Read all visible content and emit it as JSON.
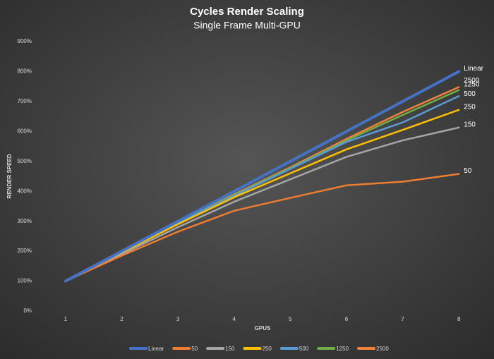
{
  "chart_data": {
    "type": "line",
    "title": "Cycles Render Scaling",
    "subtitle": "Single Frame Multi-GPU",
    "x_label": "GPUS",
    "y_label": "RENDER SPEED",
    "x": [
      1,
      2,
      3,
      4,
      5,
      6,
      7,
      8
    ],
    "xlim": [
      0.5,
      8.5
    ],
    "xticks": [
      1,
      2,
      3,
      4,
      5,
      6,
      7,
      8
    ],
    "ylim": [
      0,
      900
    ],
    "yticks": [
      {
        "value": 0,
        "label": "0%"
      },
      {
        "value": 100,
        "label": "100%"
      },
      {
        "value": 200,
        "label": "200%"
      },
      {
        "value": 300,
        "label": "300%"
      },
      {
        "value": 400,
        "label": "400%"
      },
      {
        "value": 500,
        "label": "500%"
      },
      {
        "value": 600,
        "label": "600%"
      },
      {
        "value": 700,
        "label": "700%"
      },
      {
        "value": 800,
        "label": "800%"
      },
      {
        "value": 900,
        "label": "900%"
      }
    ],
    "grid": false,
    "legend": "bottom",
    "series": [
      {
        "name": "Linear",
        "color": "#4472c4",
        "values": [
          100,
          200,
          300,
          400,
          500,
          600,
          700,
          800
        ]
      },
      {
        "name": "50",
        "color": "#ed7d31",
        "values": [
          100,
          185,
          265,
          335,
          378,
          420,
          432,
          458
        ]
      },
      {
        "name": "150",
        "color": "#a5a5a5",
        "values": [
          100,
          190,
          280,
          365,
          440,
          515,
          570,
          613
        ]
      },
      {
        "name": "250",
        "color": "#ffc000",
        "values": [
          100,
          195,
          290,
          380,
          460,
          540,
          605,
          672
        ]
      },
      {
        "name": "500",
        "color": "#5b9bd5",
        "values": [
          100,
          198,
          293,
          385,
          475,
          565,
          630,
          718
        ]
      },
      {
        "name": "1250",
        "color": "#70ad47",
        "values": [
          100,
          198,
          295,
          388,
          478,
          570,
          655,
          738
        ]
      },
      {
        "name": "2500",
        "color": "#f0803a",
        "values": [
          100,
          198,
          295,
          390,
          480,
          575,
          665,
          748
        ]
      }
    ]
  }
}
